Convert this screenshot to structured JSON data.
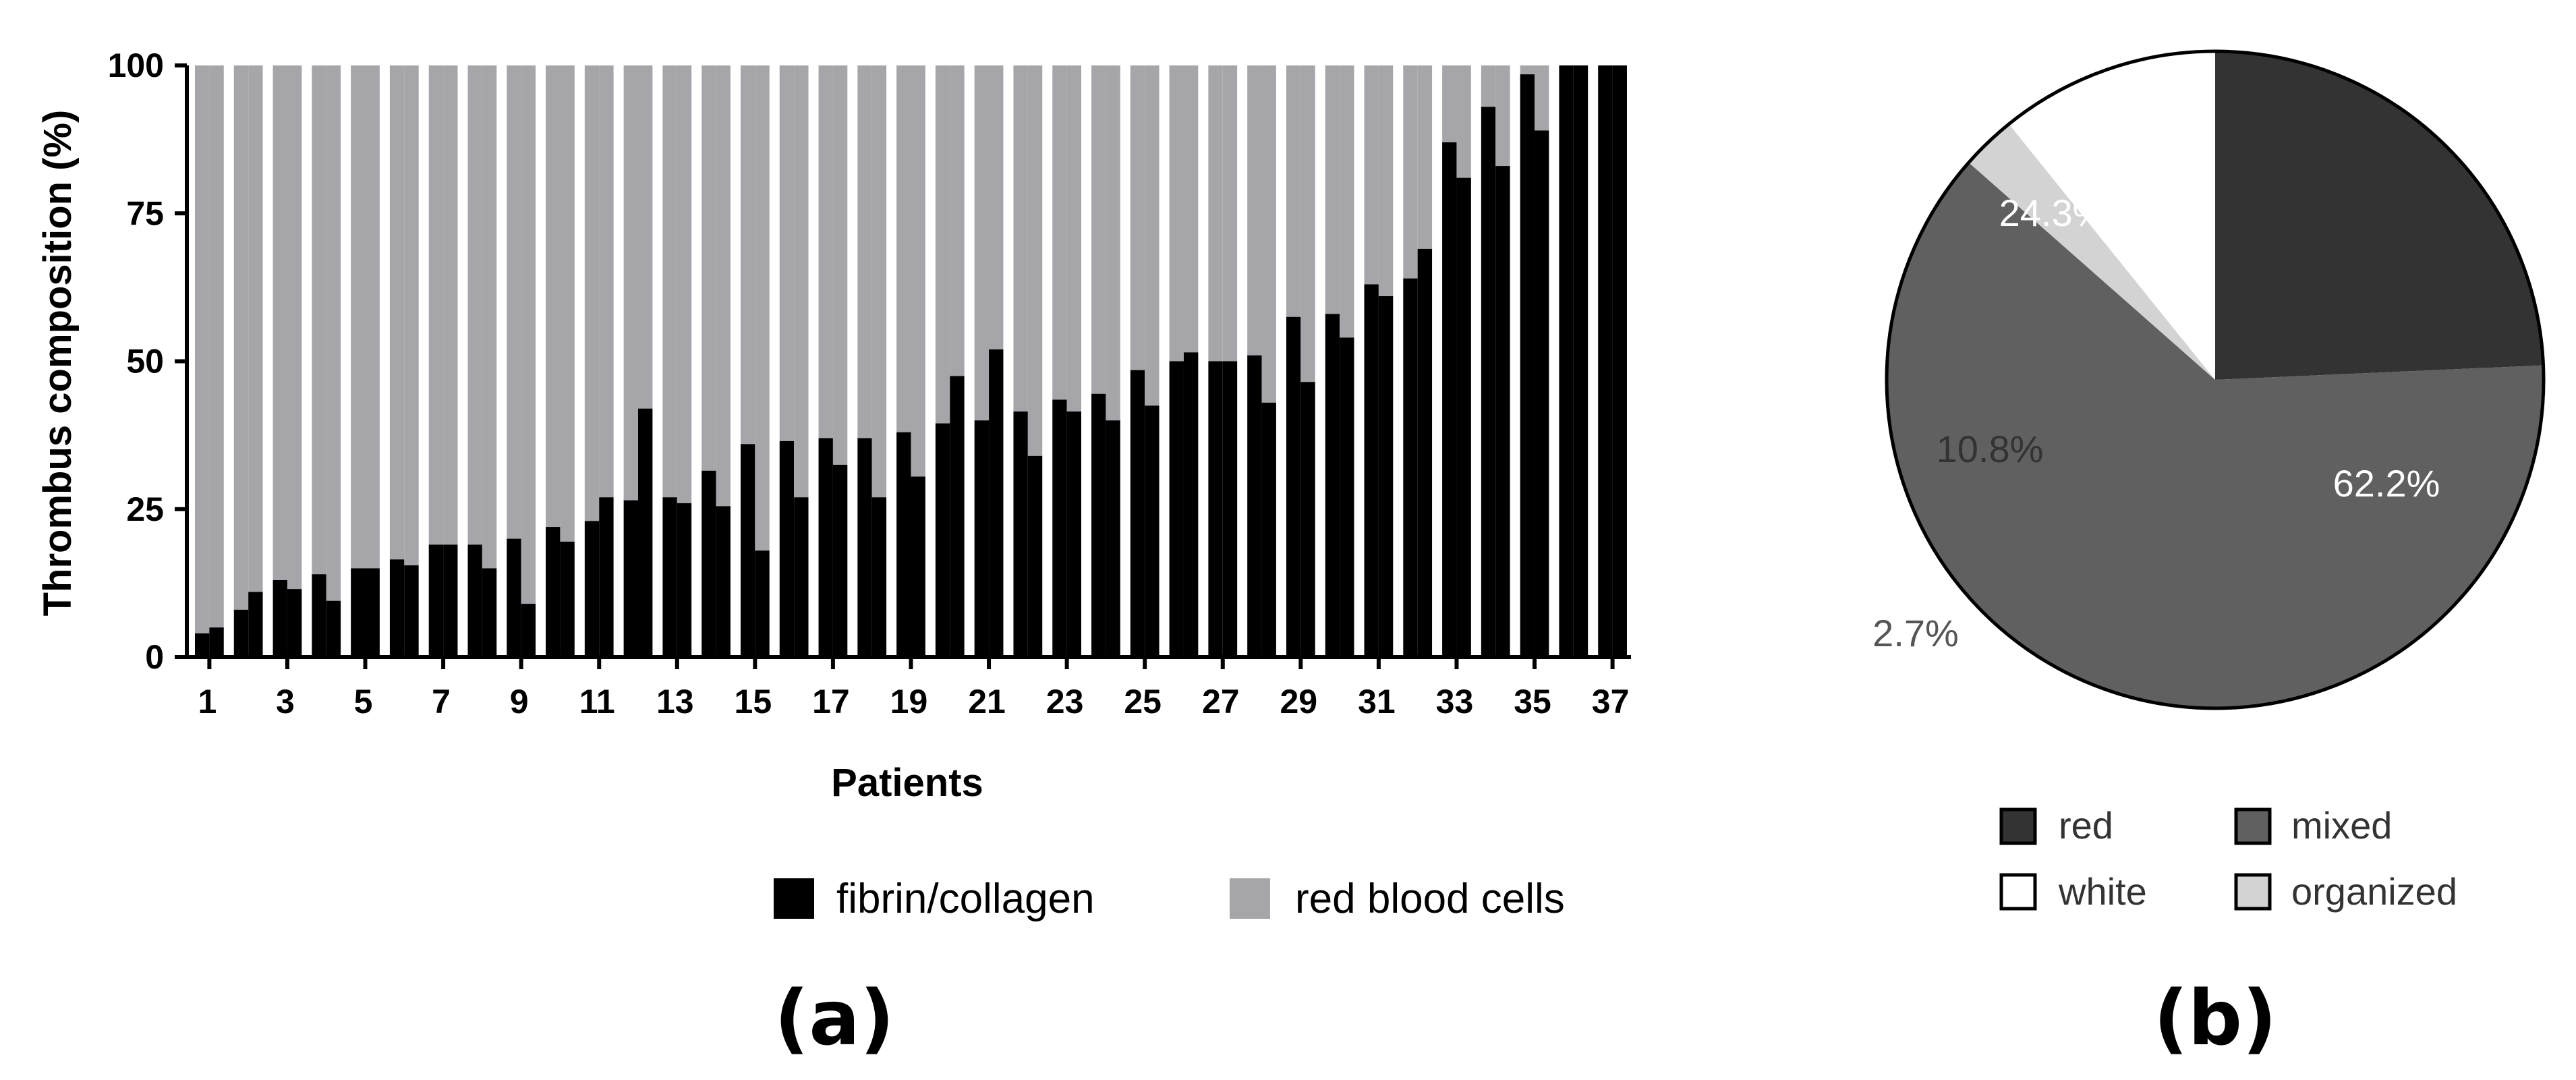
{
  "chart_data": [
    {
      "type": "bar",
      "panel_label": "(a)",
      "xlabel": "Patients",
      "ylabel": "Thrombus composition (%)",
      "ylim": [
        0,
        100
      ],
      "yticks": [
        0,
        25,
        50,
        75,
        100
      ],
      "xtick_labels": [
        "1",
        "3",
        "5",
        "7",
        "9",
        "11",
        "13",
        "15",
        "17",
        "19",
        "21",
        "23",
        "25",
        "27",
        "29",
        "31",
        "33",
        "35",
        "37"
      ],
      "categories": [
        "1",
        "2",
        "3",
        "4",
        "5",
        "6",
        "7",
        "8",
        "9",
        "10",
        "11",
        "12",
        "13",
        "14",
        "15",
        "16",
        "17",
        "18",
        "19",
        "20",
        "21",
        "22",
        "23",
        "24",
        "25",
        "26",
        "27",
        "28",
        "29",
        "30",
        "31",
        "32",
        "33",
        "34",
        "35",
        "36",
        "37"
      ],
      "stacked": true,
      "series": [
        {
          "name": "fibrin/collagen",
          "color": "#000000",
          "bar_pairs": [
            [
              4,
              5
            ],
            [
              8,
              11
            ],
            [
              13,
              11.5
            ],
            [
              14,
              9.5
            ],
            [
              15,
              15
            ],
            [
              16.5,
              15.5
            ],
            [
              19,
              19
            ],
            [
              19,
              15
            ],
            [
              20,
              9
            ],
            [
              22,
              19.5
            ],
            [
              23,
              27
            ],
            [
              26.5,
              42
            ],
            [
              27,
              26
            ],
            [
              31.5,
              25.5
            ],
            [
              36,
              18
            ],
            [
              36.5,
              27
            ],
            [
              37,
              32.5
            ],
            [
              37,
              27
            ],
            [
              38,
              30.5
            ],
            [
              39.5,
              47.5
            ],
            [
              40,
              52
            ],
            [
              41.5,
              34
            ],
            [
              43.5,
              41.5
            ],
            [
              44.5,
              40
            ],
            [
              48.5,
              42.5
            ],
            [
              50,
              51.5
            ],
            [
              50,
              50
            ],
            [
              51,
              43
            ],
            [
              57.5,
              46.5
            ],
            [
              58,
              54
            ],
            [
              63,
              61
            ],
            [
              64,
              69
            ],
            [
              87,
              81
            ],
            [
              93,
              83
            ],
            [
              98.5,
              89
            ],
            [
              100,
              100
            ],
            [
              100,
              100
            ]
          ]
        },
        {
          "name": "red blood cells",
          "color": "#a6a6aa",
          "fill_to": 100
        }
      ],
      "legend_position": "bottom"
    },
    {
      "type": "pie",
      "panel_label": "(b)",
      "slices": [
        {
          "name": "red",
          "value": 24.3,
          "label": "24.3%",
          "color": "#333333"
        },
        {
          "name": "mixed",
          "value": 62.2,
          "label": "62.2%",
          "color": "#606060"
        },
        {
          "name": "organized",
          "value": 2.7,
          "label": "2.7%",
          "color": "#d3d3d3"
        },
        {
          "name": "white",
          "value": 10.8,
          "label": "10.8%",
          "color": "#ffffff"
        }
      ],
      "legend": [
        "red",
        "mixed",
        "white",
        "organized"
      ],
      "legend_position": "bottom"
    }
  ]
}
